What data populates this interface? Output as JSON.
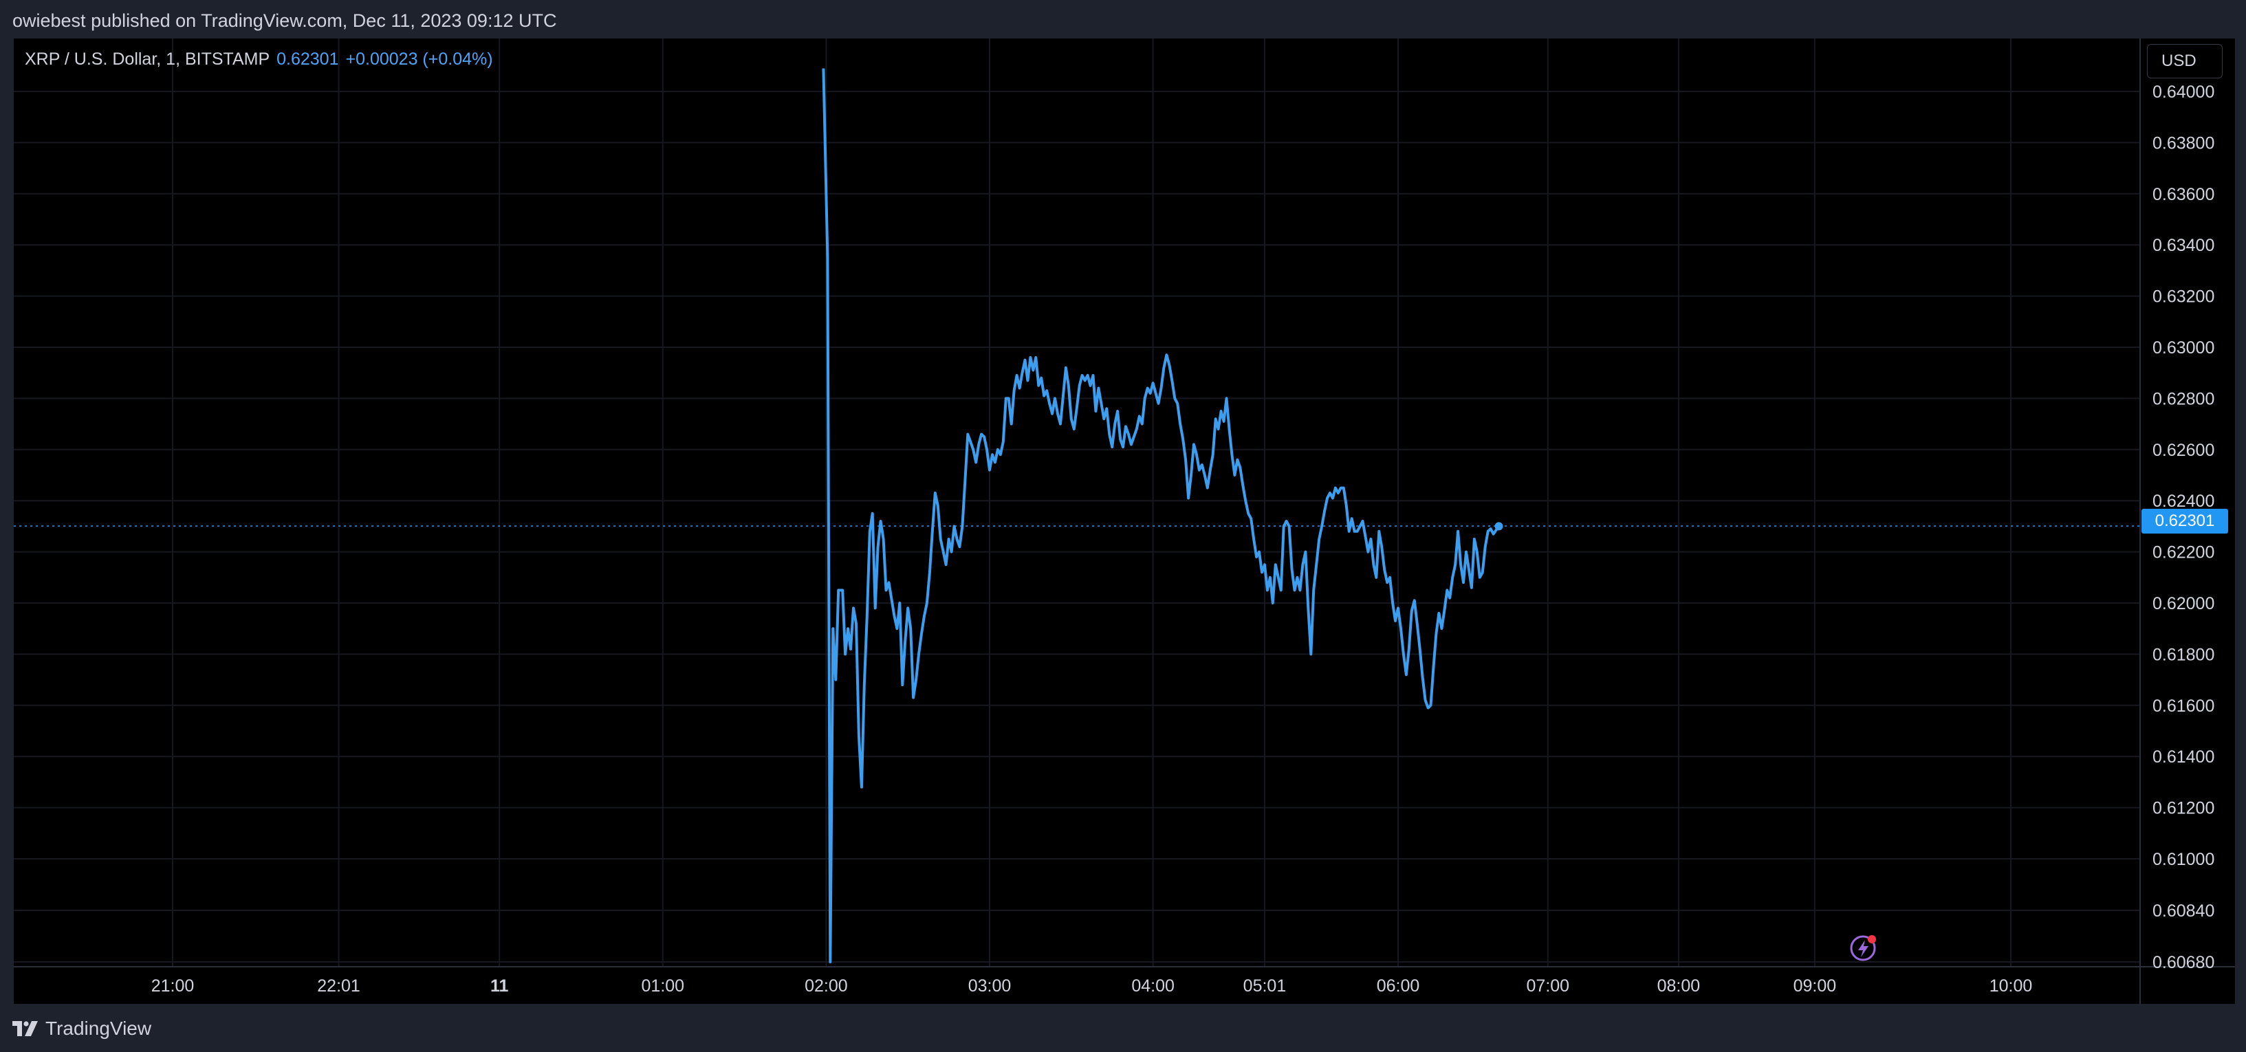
{
  "header": {
    "text": "owiebest published on TradingView.com, Dec 11, 2023 09:12 UTC"
  },
  "legend": {
    "symbol": "XRP / U.S. Dollar, 1, BITSTAMP",
    "last_price": "0.62301",
    "change": "+0.00023 (+0.04%)"
  },
  "currency_button": "USD",
  "price_tag": "0.62301",
  "footer": {
    "brand": "TradingView"
  },
  "icons": {
    "footer": "tradingview-logo-icon",
    "flash": "lightning-icon"
  },
  "colors": {
    "line": "#3d9ef0",
    "background": "#000000",
    "axis_text": "#d1d4dc",
    "price_tag": "#2196f3",
    "grid": "#1a1d25"
  },
  "chart_data": {
    "type": "line",
    "grid": true,
    "y_ticks": [
      "0.64000",
      "0.63800",
      "0.63600",
      "0.63400",
      "0.63200",
      "0.63000",
      "0.62800",
      "0.62600",
      "0.62400",
      "0.62200",
      "0.62000",
      "0.61800",
      "0.61600",
      "0.61400",
      "0.61200",
      "0.61000",
      "0.60840",
      "0.60680"
    ],
    "x_ticks": [
      {
        "label": "21:00",
        "t": -300,
        "bold": false
      },
      {
        "label": "22:01",
        "t": -239,
        "bold": false
      },
      {
        "label": "11",
        "t": -180,
        "bold": true
      },
      {
        "label": "01:00",
        "t": -120,
        "bold": false
      },
      {
        "label": "02:00",
        "t": -60,
        "bold": false
      },
      {
        "label": "03:00",
        "t": 0,
        "bold": false
      },
      {
        "label": "04:00",
        "t": 60,
        "bold": false
      },
      {
        "label": "05:01",
        "t": 101,
        "bold": false
      },
      {
        "label": "06:00",
        "t": 150,
        "bold": false
      },
      {
        "label": "07:00",
        "t": 205,
        "bold": false
      },
      {
        "label": "08:00",
        "t": 253,
        "bold": false
      },
      {
        "label": "09:00",
        "t": 303,
        "bold": false
      },
      {
        "label": "10:00",
        "t": 375,
        "bold": false
      }
    ],
    "series": [
      {
        "values": [
          [
            -61,
            0.6409
          ],
          [
            -59.5,
            0.6335
          ],
          [
            -58.5,
            0.6068
          ],
          [
            -57.5,
            0.619
          ],
          [
            -56.5,
            0.617
          ],
          [
            -55.5,
            0.6205
          ],
          [
            -54,
            0.6205
          ],
          [
            -53,
            0.618
          ],
          [
            -52,
            0.619
          ],
          [
            -51,
            0.6182
          ],
          [
            -50,
            0.6198
          ],
          [
            -49,
            0.6192
          ],
          [
            -48,
            0.6148
          ],
          [
            -47,
            0.6128
          ],
          [
            -46,
            0.6168
          ],
          [
            -45,
            0.6195
          ],
          [
            -44,
            0.6228
          ],
          [
            -43,
            0.6235
          ],
          [
            -42,
            0.6198
          ],
          [
            -41,
            0.6222
          ],
          [
            -40,
            0.6232
          ],
          [
            -39,
            0.6225
          ],
          [
            -38,
            0.6205
          ],
          [
            -37,
            0.6208
          ],
          [
            -35,
            0.6195
          ],
          [
            -34,
            0.619
          ],
          [
            -33,
            0.62
          ],
          [
            -32,
            0.6168
          ],
          [
            -31,
            0.6185
          ],
          [
            -30,
            0.6198
          ],
          [
            -29,
            0.619
          ],
          [
            -28,
            0.6163
          ],
          [
            -27,
            0.617
          ],
          [
            -26,
            0.618
          ],
          [
            -25,
            0.6188
          ],
          [
            -24,
            0.6195
          ],
          [
            -23,
            0.62
          ],
          [
            -22,
            0.6212
          ],
          [
            -21,
            0.6228
          ],
          [
            -20,
            0.6243
          ],
          [
            -19,
            0.6238
          ],
          [
            -18,
            0.6225
          ],
          [
            -17,
            0.622
          ],
          [
            -16,
            0.6215
          ],
          [
            -15,
            0.6225
          ],
          [
            -14,
            0.622
          ],
          [
            -13,
            0.623
          ],
          [
            -12,
            0.6225
          ],
          [
            -11,
            0.6222
          ],
          [
            -10,
            0.623
          ],
          [
            -9,
            0.6248
          ],
          [
            -8,
            0.6266
          ],
          [
            -7,
            0.6263
          ],
          [
            -6,
            0.626
          ],
          [
            -5,
            0.6255
          ],
          [
            -4,
            0.6262
          ],
          [
            -3,
            0.6266
          ],
          [
            -2,
            0.6265
          ],
          [
            -1,
            0.626
          ],
          [
            0,
            0.6252
          ],
          [
            1,
            0.6258
          ],
          [
            2,
            0.6255
          ],
          [
            3,
            0.626
          ],
          [
            4,
            0.6258
          ],
          [
            5,
            0.6263
          ],
          [
            6,
            0.628
          ],
          [
            7,
            0.628
          ],
          [
            8,
            0.627
          ],
          [
            9,
            0.6283
          ],
          [
            10,
            0.6289
          ],
          [
            11,
            0.6284
          ],
          [
            12,
            0.629
          ],
          [
            13,
            0.6295
          ],
          [
            14,
            0.6287
          ],
          [
            15,
            0.6296
          ],
          [
            16,
            0.6291
          ],
          [
            17,
            0.6296
          ],
          [
            18,
            0.6285
          ],
          [
            19,
            0.6288
          ],
          [
            20,
            0.6281
          ],
          [
            21,
            0.6283
          ],
          [
            22,
            0.6278
          ],
          [
            23,
            0.6274
          ],
          [
            24,
            0.628
          ],
          [
            25,
            0.6274
          ],
          [
            26,
            0.627
          ],
          [
            28,
            0.6292
          ],
          [
            29,
            0.6285
          ],
          [
            30,
            0.6272
          ],
          [
            31,
            0.6268
          ],
          [
            32,
            0.6276
          ],
          [
            33,
            0.6285
          ],
          [
            34,
            0.6289
          ],
          [
            35,
            0.6287
          ],
          [
            36,
            0.6289
          ],
          [
            37,
            0.6285
          ],
          [
            38,
            0.6289
          ],
          [
            39,
            0.6275
          ],
          [
            40,
            0.6284
          ],
          [
            41,
            0.6278
          ],
          [
            42,
            0.6272
          ],
          [
            43,
            0.6276
          ],
          [
            44,
            0.6266
          ],
          [
            45,
            0.6261
          ],
          [
            46,
            0.627
          ],
          [
            47,
            0.6275
          ],
          [
            48,
            0.6264
          ],
          [
            49,
            0.6261
          ],
          [
            50,
            0.6269
          ],
          [
            51,
            0.6266
          ],
          [
            52,
            0.6262
          ],
          [
            53,
            0.6265
          ],
          [
            54,
            0.6268
          ],
          [
            55,
            0.6273
          ],
          [
            56,
            0.627
          ],
          [
            57,
            0.628
          ],
          [
            58,
            0.6284
          ],
          [
            59,
            0.6282
          ],
          [
            60,
            0.6286
          ],
          [
            61,
            0.6282
          ],
          [
            62,
            0.6278
          ],
          [
            63,
            0.6284
          ],
          [
            64,
            0.6292
          ],
          [
            65,
            0.6297
          ],
          [
            66,
            0.6293
          ],
          [
            67,
            0.6287
          ],
          [
            68,
            0.628
          ],
          [
            69,
            0.6278
          ],
          [
            70,
            0.627
          ],
          [
            71,
            0.6264
          ],
          [
            72,
            0.6256
          ],
          [
            73,
            0.6241
          ],
          [
            74,
            0.625
          ],
          [
            75,
            0.6262
          ],
          [
            76,
            0.6258
          ],
          [
            77,
            0.6252
          ],
          [
            78,
            0.6254
          ],
          [
            79,
            0.625
          ],
          [
            80,
            0.6245
          ],
          [
            81,
            0.6252
          ],
          [
            82,
            0.6258
          ],
          [
            83,
            0.6272
          ],
          [
            84,
            0.6268
          ],
          [
            85,
            0.6275
          ],
          [
            86,
            0.6271
          ],
          [
            87,
            0.628
          ],
          [
            88,
            0.6268
          ],
          [
            89,
            0.6258
          ],
          [
            90,
            0.625
          ],
          [
            91,
            0.6256
          ],
          [
            92,
            0.6253
          ],
          [
            93,
            0.6246
          ],
          [
            94,
            0.624
          ],
          [
            95,
            0.6235
          ],
          [
            96,
            0.6233
          ],
          [
            97,
            0.6225
          ],
          [
            98,
            0.6218
          ],
          [
            99,
            0.622
          ],
          [
            100,
            0.6212
          ],
          [
            101,
            0.6215
          ],
          [
            102,
            0.6205
          ],
          [
            103,
            0.621
          ],
          [
            104,
            0.62
          ],
          [
            105,
            0.6215
          ],
          [
            106,
            0.621
          ],
          [
            107,
            0.6205
          ],
          [
            108,
            0.623
          ],
          [
            109,
            0.6232
          ],
          [
            110,
            0.623
          ],
          [
            111,
            0.6213
          ],
          [
            112,
            0.6205
          ],
          [
            113,
            0.621
          ],
          [
            114,
            0.6205
          ],
          [
            115,
            0.6215
          ],
          [
            116,
            0.622
          ],
          [
            117,
            0.6198
          ],
          [
            118,
            0.618
          ],
          [
            119,
            0.6205
          ],
          [
            120,
            0.6215
          ],
          [
            121,
            0.6225
          ],
          [
            122,
            0.623
          ],
          [
            123,
            0.6236
          ],
          [
            124,
            0.6241
          ],
          [
            125,
            0.6243
          ],
          [
            126,
            0.6241
          ],
          [
            127,
            0.6245
          ],
          [
            128,
            0.6243
          ],
          [
            129,
            0.6245
          ],
          [
            130,
            0.6245
          ],
          [
            131,
            0.6238
          ],
          [
            132,
            0.6228
          ],
          [
            133,
            0.6233
          ],
          [
            134,
            0.6228
          ],
          [
            135,
            0.6228
          ],
          [
            136,
            0.623
          ],
          [
            137,
            0.6232
          ],
          [
            138,
            0.6226
          ],
          [
            139,
            0.622
          ],
          [
            140,
            0.6225
          ],
          [
            141,
            0.6215
          ],
          [
            142,
            0.621
          ],
          [
            143,
            0.6228
          ],
          [
            144,
            0.6222
          ],
          [
            145,
            0.6213
          ],
          [
            146,
            0.6208
          ],
          [
            147,
            0.621
          ],
          [
            148,
            0.62
          ],
          [
            149,
            0.6193
          ],
          [
            150,
            0.6198
          ],
          [
            151,
            0.619
          ],
          [
            152,
            0.618
          ],
          [
            153,
            0.6172
          ],
          [
            154,
            0.6182
          ],
          [
            155,
            0.6197
          ],
          [
            156,
            0.6201
          ],
          [
            157,
            0.6192
          ],
          [
            158,
            0.6182
          ],
          [
            159,
            0.6171
          ],
          [
            160,
            0.6162
          ],
          [
            161,
            0.6159
          ],
          [
            162,
            0.616
          ],
          [
            163,
            0.6175
          ],
          [
            164,
            0.6188
          ],
          [
            165,
            0.6196
          ],
          [
            166,
            0.619
          ],
          [
            167,
            0.6197
          ],
          [
            168,
            0.6205
          ],
          [
            169,
            0.6202
          ],
          [
            170,
            0.621
          ],
          [
            171,
            0.6215
          ],
          [
            172,
            0.6228
          ],
          [
            173,
            0.6215
          ],
          [
            174,
            0.6208
          ],
          [
            175,
            0.622
          ],
          [
            176,
            0.6213
          ],
          [
            177,
            0.6206
          ],
          [
            178,
            0.6225
          ],
          [
            179,
            0.622
          ],
          [
            180,
            0.621
          ],
          [
            181,
            0.6212
          ],
          [
            182,
            0.6222
          ],
          [
            183,
            0.6228
          ],
          [
            184,
            0.6229
          ],
          [
            185,
            0.6227
          ],
          [
            187,
            0.623
          ]
        ]
      }
    ]
  }
}
